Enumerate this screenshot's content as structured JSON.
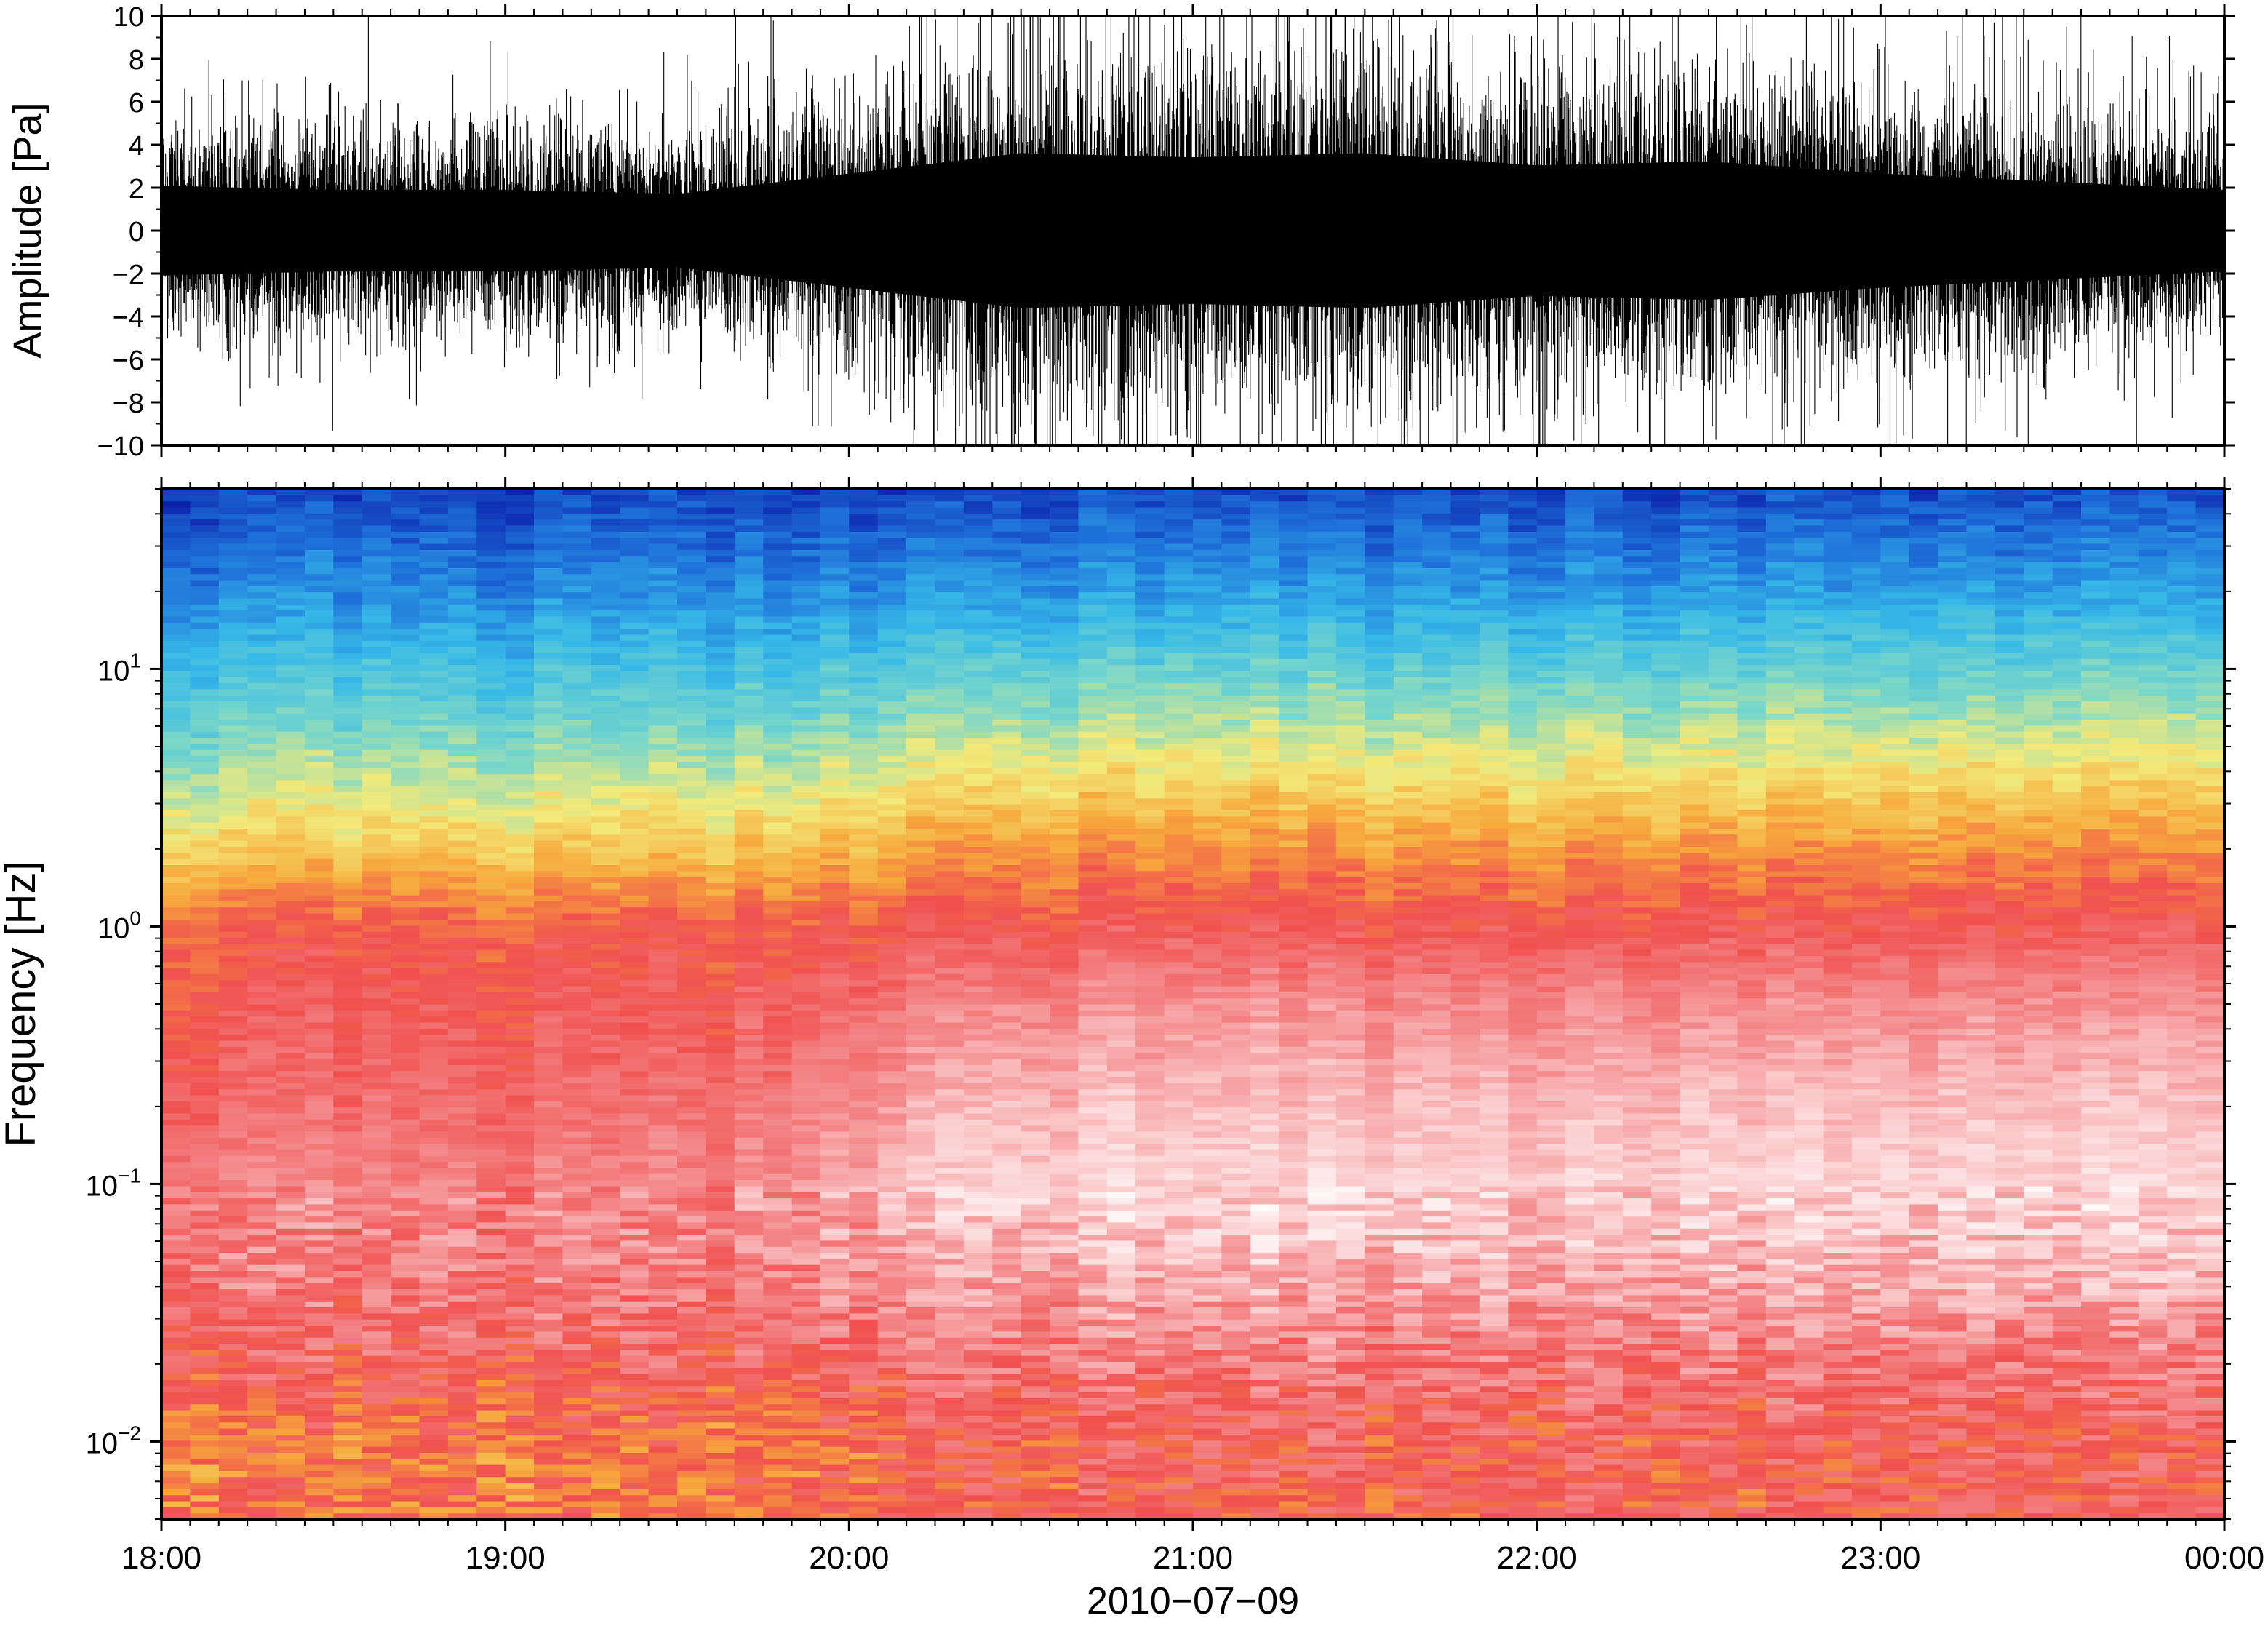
{
  "chart_data": [
    {
      "type": "line",
      "panel": "waveform",
      "ylabel": "Amplitude [Pa]",
      "ylim": [
        -10,
        10
      ],
      "yticks": [
        10,
        8,
        6,
        4,
        2,
        0,
        -2,
        -4,
        -6,
        -8,
        -10
      ],
      "ytick_labels": [
        "10",
        "8",
        "6",
        "4",
        "2",
        "0",
        "−2",
        "−4",
        "−6",
        "−8",
        "−10"
      ],
      "xlim": [
        "18:00",
        "00:00"
      ],
      "series": [
        {
          "hours": [
            18.0,
            18.5,
            19.0,
            19.5,
            20.0,
            20.5,
            21.0,
            21.5,
            22.0,
            22.5,
            23.0,
            23.5,
            24.0
          ],
          "envelope_amplitude_pa": [
            5.5,
            5.0,
            5.0,
            4.5,
            7.0,
            9.5,
            9.0,
            9.5,
            8.0,
            8.5,
            7.0,
            6.0,
            5.0
          ]
        }
      ],
      "grid": false
    },
    {
      "type": "heatmap",
      "panel": "spectrogram",
      "ylabel": "Frequency [Hz]",
      "yscale": "log",
      "ylim": [
        0.005,
        50
      ],
      "yticks": [
        0.01,
        0.1,
        1,
        10
      ],
      "ytick_labels": [
        {
          "base": "10",
          "exp": "−2"
        },
        {
          "base": "10",
          "exp": "−1"
        },
        {
          "base": "10",
          "exp": "0"
        },
        {
          "base": "10",
          "exp": "1"
        }
      ],
      "xlim": [
        "18:00",
        "00:00"
      ],
      "xticks": [
        "18:00",
        "19:00",
        "20:00",
        "21:00",
        "22:00",
        "23:00",
        "00:00"
      ],
      "xlabel": "2010−07−09",
      "colormap": [
        "#0a1aa8",
        "#1e6fd9",
        "#36b9e8",
        "#7ad7c9",
        "#f2ea7a",
        "#f7a93c",
        "#f0504e",
        "#f48a8c",
        "#fbcfd0",
        "#ffffff"
      ],
      "relative_power_profile": {
        "freqs_hz": [
          0.005,
          0.01,
          0.02,
          0.05,
          0.1,
          0.2,
          0.5,
          1,
          2,
          5,
          10,
          20,
          50
        ],
        "level_before_20h": [
          0.62,
          0.62,
          0.69,
          0.76,
          0.76,
          0.72,
          0.68,
          0.65,
          0.5,
          0.35,
          0.25,
          0.15,
          0.05
        ],
        "level_after_20h": [
          0.67,
          0.68,
          0.74,
          0.85,
          0.9,
          0.86,
          0.78,
          0.68,
          0.58,
          0.42,
          0.3,
          0.18,
          0.06
        ]
      },
      "grid": false
    }
  ]
}
